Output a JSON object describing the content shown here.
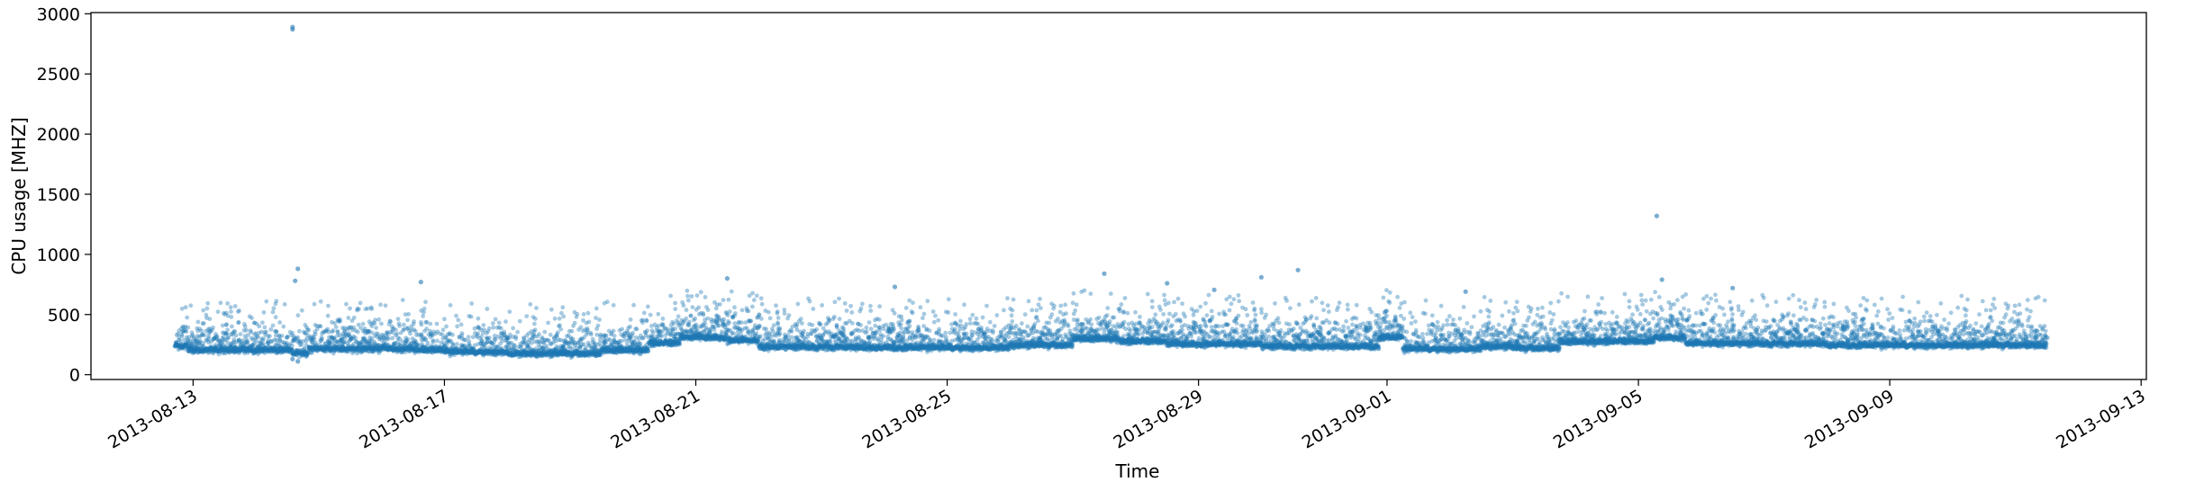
{
  "chart_data": {
    "type": "scatter",
    "title": "",
    "xlabel": "Time",
    "ylabel": "CPU usage [MHZ]",
    "xlim": [
      "2013-08-11T09:00:00",
      "2013-09-13T02:00:00"
    ],
    "ylim": [
      -40,
      3010
    ],
    "x_ticks": [
      "2013-08-13",
      "2013-08-17",
      "2013-08-21",
      "2013-08-25",
      "2013-08-29",
      "2013-09-01",
      "2013-09-05",
      "2013-09-09",
      "2013-09-13"
    ],
    "y_ticks": [
      0,
      500,
      1000,
      1500,
      2000,
      2500,
      3000
    ],
    "x_range": [
      "2013-08-12T17:00:00",
      "2013-09-11T12:00:00"
    ],
    "marker_color": "#1f77b4",
    "marker_alpha": 0.4,
    "grid": false,
    "legend": false,
    "baseline_segments": [
      {
        "start": "2013-08-12T17:00:00",
        "end": "2013-08-12T22:00:00",
        "value": 240
      },
      {
        "start": "2013-08-12T22:00:00",
        "end": "2013-08-14T14:00:00",
        "value": 205
      },
      {
        "start": "2013-08-14T14:00:00",
        "end": "2013-08-14T20:00:00",
        "value": 180
      },
      {
        "start": "2013-08-14T20:00:00",
        "end": "2013-08-16T12:00:00",
        "value": 215
      },
      {
        "start": "2013-08-16T12:00:00",
        "end": "2013-08-17T00:00:00",
        "value": 205
      },
      {
        "start": "2013-08-17T00:00:00",
        "end": "2013-08-18T00:00:00",
        "value": 190
      },
      {
        "start": "2013-08-18T00:00:00",
        "end": "2013-08-19T12:00:00",
        "value": 175
      },
      {
        "start": "2013-08-19T12:00:00",
        "end": "2013-08-20T06:00:00",
        "value": 205
      },
      {
        "start": "2013-08-20T06:00:00",
        "end": "2013-08-20T18:00:00",
        "value": 260
      },
      {
        "start": "2013-08-20T18:00:00",
        "end": "2013-08-21T12:00:00",
        "value": 310
      },
      {
        "start": "2013-08-21T12:00:00",
        "end": "2013-08-22T00:00:00",
        "value": 285
      },
      {
        "start": "2013-08-22T00:00:00",
        "end": "2013-08-23T12:00:00",
        "value": 230
      },
      {
        "start": "2013-08-23T12:00:00",
        "end": "2013-08-26T00:00:00",
        "value": 225
      },
      {
        "start": "2013-08-26T00:00:00",
        "end": "2013-08-27T00:00:00",
        "value": 245
      },
      {
        "start": "2013-08-27T00:00:00",
        "end": "2013-08-27T18:00:00",
        "value": 300
      },
      {
        "start": "2013-08-27T18:00:00",
        "end": "2013-08-28T12:00:00",
        "value": 275
      },
      {
        "start": "2013-08-28T12:00:00",
        "end": "2013-08-30T00:00:00",
        "value": 255
      },
      {
        "start": "2013-08-30T00:00:00",
        "end": "2013-08-31T21:00:00",
        "value": 235
      },
      {
        "start": "2013-08-31T21:00:00",
        "end": "2013-09-01T06:00:00",
        "value": 310
      },
      {
        "start": "2013-09-01T06:00:00",
        "end": "2013-09-02T12:00:00",
        "value": 215
      },
      {
        "start": "2013-09-02T12:00:00",
        "end": "2013-09-03T00:00:00",
        "value": 235
      },
      {
        "start": "2013-09-03T00:00:00",
        "end": "2013-09-03T18:00:00",
        "value": 220
      },
      {
        "start": "2013-09-03T18:00:00",
        "end": "2013-09-05T06:00:00",
        "value": 275
      },
      {
        "start": "2013-09-05T06:00:00",
        "end": "2013-09-05T18:00:00",
        "value": 310
      },
      {
        "start": "2013-09-05T18:00:00",
        "end": "2013-09-06T12:00:00",
        "value": 260
      },
      {
        "start": "2013-09-06T12:00:00",
        "end": "2013-09-08T00:00:00",
        "value": 258
      },
      {
        "start": "2013-09-08T00:00:00",
        "end": "2013-09-11T12:00:00",
        "value": 245
      }
    ],
    "outliers": [
      {
        "x": "2013-08-14T14:00:00",
        "y": 2890
      },
      {
        "x": "2013-08-14T14:00:00",
        "y": 2870
      },
      {
        "x": "2013-08-14T16:00:00",
        "y": 880
      },
      {
        "x": "2013-08-14T15:00:00",
        "y": 780
      },
      {
        "x": "2013-08-14T16:00:00",
        "y": 110
      },
      {
        "x": "2013-08-14T14:00:00",
        "y": 130
      },
      {
        "x": "2013-08-16T15:00:00",
        "y": 770
      },
      {
        "x": "2013-08-21T12:00:00",
        "y": 800
      },
      {
        "x": "2013-08-27T12:00:00",
        "y": 840
      },
      {
        "x": "2013-08-28T12:00:00",
        "y": 760
      },
      {
        "x": "2013-08-30T00:00:00",
        "y": 810
      },
      {
        "x": "2013-08-30T14:00:00",
        "y": 870
      },
      {
        "x": "2013-09-05T07:00:00",
        "y": 1320
      },
      {
        "x": "2013-09-05T09:00:00",
        "y": 790
      },
      {
        "x": "2013-09-06T12:00:00",
        "y": 720
      },
      {
        "x": "2013-08-24T04:00:00",
        "y": 730
      },
      {
        "x": "2013-08-29T06:00:00",
        "y": 705
      },
      {
        "x": "2013-09-02T06:00:00",
        "y": 690
      }
    ]
  }
}
